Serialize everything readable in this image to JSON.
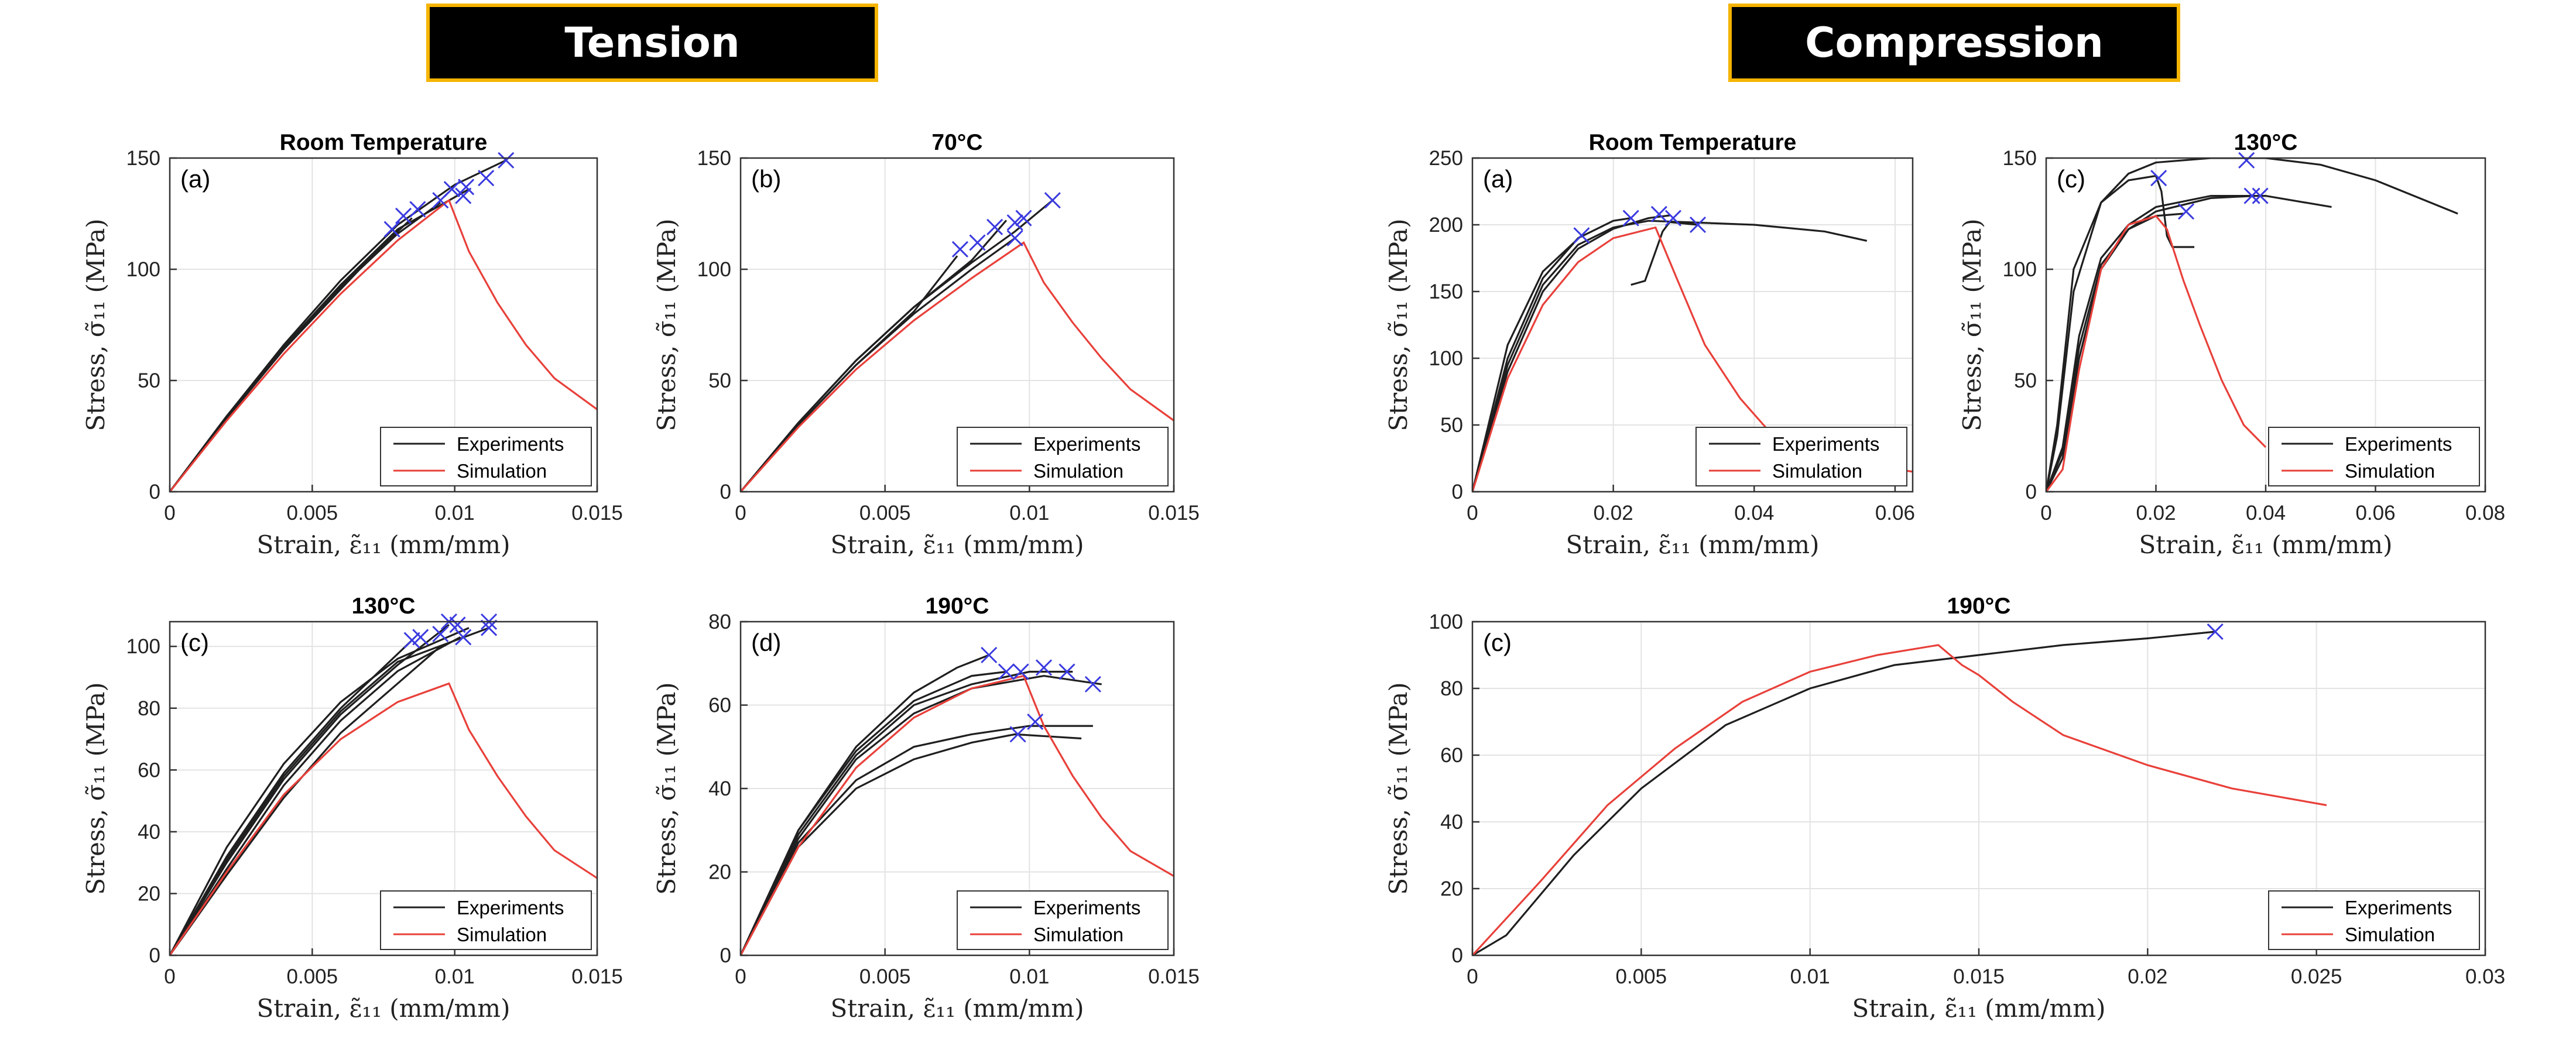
{
  "headers": {
    "tension": "Tension",
    "compression": "Compression"
  },
  "common": {
    "xlabel": "Strain, ε̃₁₁ (mm/mm)",
    "ylabel": "Stress, σ̃₁₁ (MPa)",
    "legend": [
      "Experiments",
      "Simulation"
    ],
    "colors": {
      "experiment": "#1f1f1f",
      "simulation": "#e8403a",
      "failure_marker": "#3a3ae0"
    }
  },
  "chart_data": [
    {
      "id": "t-rt",
      "group": "Tension",
      "type": "line",
      "title": "Room Temperature",
      "tag": "(a)",
      "xlim": [
        0,
        0.015
      ],
      "ylim": [
        0,
        150
      ],
      "xticks": [
        0,
        0.005,
        0.01,
        0.015
      ],
      "yticks": [
        0,
        50,
        100,
        150
      ],
      "experiments": [
        {
          "x": [
            0,
            0.002,
            0.004,
            0.006,
            0.008,
            0.01,
            0.0118
          ],
          "y": [
            0,
            34,
            66,
            95,
            120,
            138,
            149
          ]
        },
        {
          "x": [
            0,
            0.002,
            0.004,
            0.006,
            0.008,
            0.0095
          ],
          "y": [
            0,
            33,
            64,
            92,
            116,
            130
          ]
        },
        {
          "x": [
            0,
            0.002,
            0.004,
            0.006,
            0.008,
            0.0105
          ],
          "y": [
            0,
            33,
            65,
            93,
            118,
            136
          ]
        },
        {
          "x": [
            0,
            0.002,
            0.004,
            0.006,
            0.008
          ],
          "y": [
            0,
            33,
            64,
            91,
            118
          ]
        },
        {
          "x": [
            0,
            0.002,
            0.004,
            0.006,
            0.0085
          ],
          "y": [
            0,
            34,
            65,
            93,
            123
          ]
        }
      ],
      "simulation": {
        "x": [
          0,
          0.002,
          0.004,
          0.006,
          0.008,
          0.0098,
          0.0105,
          0.0115,
          0.0125,
          0.0135,
          0.015
        ],
        "y": [
          0,
          32,
          62,
          89,
          113,
          131,
          108,
          85,
          66,
          51,
          37
        ]
      },
      "failures": [
        [
          0.0118,
          149
        ],
        [
          0.0111,
          141
        ],
        [
          0.0104,
          137
        ],
        [
          0.0099,
          136
        ],
        [
          0.0095,
          131
        ],
        [
          0.0087,
          127
        ],
        [
          0.0082,
          124
        ],
        [
          0.0078,
          118
        ],
        [
          0.0103,
          133
        ]
      ]
    },
    {
      "id": "t-70",
      "group": "Tension",
      "type": "line",
      "title": "70°C",
      "tag": "(b)",
      "xlim": [
        0,
        0.015
      ],
      "ylim": [
        0,
        150
      ],
      "xticks": [
        0,
        0.005,
        0.01,
        0.015
      ],
      "yticks": [
        0,
        50,
        100,
        150
      ],
      "experiments": [
        {
          "x": [
            0,
            0.002,
            0.004,
            0.006,
            0.008,
            0.0095,
            0.0108
          ],
          "y": [
            0,
            31,
            59,
            83,
            103,
            117,
            131
          ]
        },
        {
          "x": [
            0,
            0.002,
            0.004,
            0.006,
            0.008,
            0.0095
          ],
          "y": [
            0,
            30,
            57,
            80,
            100,
            114
          ]
        },
        {
          "x": [
            0,
            0.002,
            0.004,
            0.006,
            0.008,
            0.0092
          ],
          "y": [
            0,
            31,
            59,
            83,
            104,
            122
          ]
        },
        {
          "x": [
            0,
            0.002,
            0.004,
            0.006,
            0.0075
          ],
          "y": [
            0,
            30,
            57,
            81,
            106
          ]
        }
      ],
      "simulation": {
        "x": [
          0,
          0.002,
          0.004,
          0.006,
          0.008,
          0.0098,
          0.0105,
          0.0115,
          0.0125,
          0.0135,
          0.015
        ],
        "y": [
          0,
          29,
          55,
          77,
          96,
          112,
          94,
          76,
          60,
          46,
          32
        ]
      },
      "failures": [
        [
          0.0108,
          131
        ],
        [
          0.0098,
          123
        ],
        [
          0.0095,
          121
        ],
        [
          0.0088,
          119
        ],
        [
          0.0095,
          114
        ],
        [
          0.0076,
          109
        ],
        [
          0.0082,
          112
        ]
      ]
    },
    {
      "id": "t-130",
      "group": "Tension",
      "type": "line",
      "title": "130°C",
      "tag": "(c)",
      "xlim": [
        0,
        0.015
      ],
      "ylim": [
        0,
        108
      ],
      "xticks": [
        0,
        0.005,
        0.01,
        0.015
      ],
      "yticks": [
        0,
        20,
        40,
        60,
        80,
        100
      ],
      "experiments": [
        {
          "x": [
            0,
            0.002,
            0.004,
            0.006,
            0.008,
            0.0105
          ],
          "y": [
            0,
            35,
            62,
            82,
            96,
            106
          ]
        },
        {
          "x": [
            0,
            0.002,
            0.004,
            0.006,
            0.008,
            0.0102
          ],
          "y": [
            0,
            28,
            55,
            76,
            92,
            103
          ]
        },
        {
          "x": [
            0,
            0.002,
            0.004,
            0.006,
            0.008,
            0.0098
          ],
          "y": [
            0,
            30,
            57,
            78,
            94,
            107
          ]
        },
        {
          "x": [
            0,
            0.002,
            0.004,
            0.006,
            0.008,
            0.0095
          ],
          "y": [
            0,
            26,
            51,
            72,
            88,
            100
          ]
        },
        {
          "x": [
            0,
            0.002,
            0.004,
            0.006,
            0.0085
          ],
          "y": [
            0,
            32,
            59,
            80,
            102
          ]
        },
        {
          "x": [
            0,
            0.002,
            0.004,
            0.006,
            0.008,
            0.0112
          ],
          "y": [
            0,
            31,
            58,
            79,
            95,
            106
          ]
        }
      ],
      "simulation": {
        "x": [
          0,
          0.002,
          0.004,
          0.006,
          0.008,
          0.0098,
          0.0105,
          0.0115,
          0.0125,
          0.0135,
          0.015
        ],
        "y": [
          0,
          27,
          52,
          70,
          82,
          88,
          73,
          58,
          45,
          34,
          25
        ]
      },
      "failures": [
        [
          0.0112,
          106
        ],
        [
          0.0112,
          108
        ],
        [
          0.0103,
          103
        ],
        [
          0.0101,
          107
        ],
        [
          0.0098,
          108
        ],
        [
          0.0095,
          104
        ],
        [
          0.0088,
          103
        ],
        [
          0.0085,
          102
        ]
      ]
    },
    {
      "id": "t-190",
      "group": "Tension",
      "type": "line",
      "title": "190°C",
      "tag": "(d)",
      "xlim": [
        0,
        0.015
      ],
      "ylim": [
        0,
        80
      ],
      "xticks": [
        0,
        0.005,
        0.01,
        0.015
      ],
      "yticks": [
        0,
        20,
        40,
        60,
        80
      ],
      "experiments": [
        {
          "x": [
            0,
            0.002,
            0.004,
            0.006,
            0.0075,
            0.0086
          ],
          "y": [
            0,
            30,
            50,
            63,
            69,
            72
          ]
        },
        {
          "x": [
            0,
            0.002,
            0.004,
            0.006,
            0.008,
            0.0105,
            0.0125
          ],
          "y": [
            0,
            28,
            47,
            58,
            64,
            67,
            65
          ]
        },
        {
          "x": [
            0,
            0.002,
            0.004,
            0.006,
            0.008,
            0.01,
            0.0115
          ],
          "y": [
            0,
            29,
            48,
            60,
            65,
            68,
            68
          ]
        },
        {
          "x": [
            0,
            0.002,
            0.004,
            0.006,
            0.008,
            0.01,
            0.0122
          ],
          "y": [
            0,
            27,
            42,
            50,
            53,
            55,
            55
          ]
        },
        {
          "x": [
            0,
            0.002,
            0.004,
            0.006,
            0.008,
            0.0095,
            0.0118
          ],
          "y": [
            0,
            26,
            40,
            47,
            51,
            53,
            52
          ]
        },
        {
          "x": [
            0,
            0.002,
            0.004,
            0.006,
            0.008,
            0.0092
          ],
          "y": [
            0,
            30,
            49,
            61,
            67,
            68
          ]
        }
      ],
      "simulation": {
        "x": [
          0,
          0.002,
          0.004,
          0.006,
          0.008,
          0.0098,
          0.0105,
          0.0115,
          0.0125,
          0.0135,
          0.015
        ],
        "y": [
          0,
          26,
          45,
          57,
          64,
          67,
          55,
          43,
          33,
          25,
          19
        ]
      },
      "failures": [
        [
          0.0086,
          72
        ],
        [
          0.0092,
          68
        ],
        [
          0.0097,
          68
        ],
        [
          0.0105,
          69
        ],
        [
          0.0113,
          68
        ],
        [
          0.0122,
          65
        ],
        [
          0.0096,
          53
        ],
        [
          0.0102,
          56
        ]
      ]
    },
    {
      "id": "c-rt",
      "group": "Compression",
      "type": "line",
      "title": "Room Temperature",
      "tag": "(a)",
      "xlim": [
        0,
        0.0625
      ],
      "ylim": [
        0,
        250
      ],
      "xticks": [
        0,
        0.02,
        0.04,
        0.06
      ],
      "yticks": [
        0,
        50,
        100,
        150,
        200,
        250
      ],
      "experiments": [
        {
          "x": [
            0,
            0.005,
            0.01,
            0.015,
            0.02,
            0.025,
            0.03,
            0.04,
            0.05,
            0.056
          ],
          "y": [
            0,
            95,
            155,
            185,
            198,
            203,
            202,
            200,
            195,
            188
          ]
        },
        {
          "x": [
            0,
            0.005,
            0.01,
            0.015,
            0.02,
            0.0225
          ],
          "y": [
            0,
            100,
            160,
            190,
            203,
            205
          ]
        },
        {
          "x": [
            0,
            0.005,
            0.01,
            0.015,
            0.02,
            0.025,
            0.028
          ],
          "y": [
            0,
            90,
            150,
            182,
            197,
            205,
            207
          ]
        },
        {
          "x": [
            0,
            0.005,
            0.01,
            0.0155
          ],
          "y": [
            0,
            110,
            165,
            192
          ]
        },
        {
          "x": [
            0.0225,
            0.0245,
            0.026,
            0.027,
            0.028,
            0.032
          ],
          "y": [
            155,
            158,
            180,
            195,
            202,
            200
          ]
        }
      ],
      "simulation": {
        "x": [
          0,
          0.005,
          0.01,
          0.015,
          0.02,
          0.026,
          0.029,
          0.033,
          0.038,
          0.043,
          0.05,
          0.0625
        ],
        "y": [
          0,
          85,
          140,
          172,
          190,
          198,
          160,
          110,
          70,
          40,
          25,
          15
        ]
      },
      "failures": [
        [
          0.0155,
          192
        ],
        [
          0.0225,
          205
        ],
        [
          0.0265,
          208
        ],
        [
          0.0285,
          205
        ],
        [
          0.032,
          200
        ]
      ]
    },
    {
      "id": "c-130",
      "group": "Compression",
      "type": "line",
      "title": "130°C",
      "tag": "(c)",
      "xlim": [
        0,
        0.08
      ],
      "ylim": [
        0,
        150
      ],
      "xticks": [
        0,
        0.02,
        0.04,
        0.06,
        0.08
      ],
      "yticks": [
        0,
        50,
        100,
        150
      ],
      "experiments": [
        {
          "x": [
            0,
            0.002,
            0.005,
            0.01,
            0.015,
            0.02,
            0.03,
            0.04,
            0.05,
            0.06,
            0.075
          ],
          "y": [
            0,
            25,
            90,
            130,
            143,
            148,
            150,
            150,
            147,
            140,
            125
          ]
        },
        {
          "x": [
            0,
            0.002,
            0.005,
            0.01,
            0.015,
            0.02,
            0.021,
            0.022,
            0.023,
            0.0255,
            0.027
          ],
          "y": [
            0,
            30,
            100,
            130,
            140,
            142,
            135,
            115,
            110,
            110,
            110
          ]
        },
        {
          "x": [
            0,
            0.003,
            0.006,
            0.01,
            0.015,
            0.02,
            0.03,
            0.04,
            0.052
          ],
          "y": [
            0,
            20,
            70,
            105,
            120,
            128,
            133,
            133,
            128
          ]
        },
        {
          "x": [
            0,
            0.003,
            0.006,
            0.01,
            0.015,
            0.02,
            0.03,
            0.038
          ],
          "y": [
            0,
            15,
            60,
            100,
            118,
            126,
            132,
            133
          ]
        },
        {
          "x": [
            0,
            0.003,
            0.006,
            0.01,
            0.015,
            0.02,
            0.025
          ],
          "y": [
            0,
            18,
            65,
            102,
            118,
            124,
            125
          ]
        }
      ],
      "simulation": {
        "x": [
          0,
          0.003,
          0.006,
          0.01,
          0.015,
          0.02,
          0.022,
          0.025,
          0.028,
          0.032,
          0.036,
          0.04
        ],
        "y": [
          0,
          10,
          55,
          100,
          120,
          124,
          118,
          95,
          75,
          50,
          30,
          20
        ]
      },
      "failures": [
        [
          0.0205,
          141
        ],
        [
          0.0365,
          149
        ],
        [
          0.0375,
          133
        ],
        [
          0.039,
          133
        ],
        [
          0.0255,
          126
        ]
      ]
    },
    {
      "id": "c-190",
      "group": "Compression",
      "type": "line",
      "title": "190°C",
      "tag": "(c)",
      "xlim": [
        0,
        0.03
      ],
      "ylim": [
        0,
        100
      ],
      "xticks": [
        0,
        0.005,
        0.01,
        0.015,
        0.02,
        0.025,
        0.03
      ],
      "yticks": [
        0,
        20,
        40,
        60,
        80,
        100
      ],
      "experiments": [
        {
          "x": [
            0,
            0.001,
            0.0015,
            0.003,
            0.005,
            0.0075,
            0.01,
            0.0125,
            0.015,
            0.0175,
            0.02,
            0.022
          ],
          "y": [
            0,
            6,
            12,
            30,
            50,
            69,
            80,
            87,
            90,
            93,
            95,
            97
          ]
        }
      ],
      "simulation": {
        "x": [
          0,
          0.002,
          0.004,
          0.006,
          0.008,
          0.01,
          0.012,
          0.0138,
          0.0145,
          0.015,
          0.016,
          0.0175,
          0.02,
          0.0225,
          0.0253
        ],
        "y": [
          0,
          22,
          45,
          62,
          76,
          85,
          90,
          93,
          87,
          84,
          76,
          66,
          57,
          50,
          45
        ]
      },
      "failures": [
        [
          0.022,
          97
        ]
      ]
    }
  ]
}
